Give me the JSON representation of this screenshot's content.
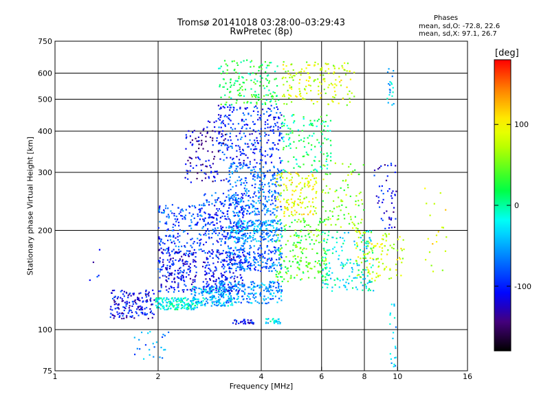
{
  "header": {
    "title": "Tromsø 20141018 03:28:00–03:29:43",
    "subtitle": "RwPretec (8p)"
  },
  "stats": {
    "heading": "Phases",
    "line_o": "mean, sd,O: -72.8, 22.6",
    "line_x": "mean, sd,X:  97.1, 26.7"
  },
  "colorbar": {
    "unit": "[deg]",
    "ticks": [
      "100",
      "0",
      "-100"
    ],
    "tick_values": [
      100,
      0,
      -100
    ],
    "range": [
      -180,
      180
    ],
    "colors": [
      "#ff0000",
      "#ff8000",
      "#ffff00",
      "#00ff00",
      "#00ffff",
      "#0080ff",
      "#0000ff",
      "#400080",
      "#000000"
    ]
  },
  "chart_data": {
    "type": "scatter",
    "title": "Tromsø 20141018 03:28:00–03:29:43",
    "subtitle": "RwPretec (8p)",
    "xlabel": "Frequency [MHz]",
    "ylabel": "Stationary phase Virtual Height [km]",
    "x_scale": "log",
    "y_scale": "log",
    "xlim": [
      1,
      16
    ],
    "ylim": [
      75,
      750
    ],
    "x_ticks": [
      1,
      2,
      4,
      6,
      8,
      10,
      16
    ],
    "x_tick_labels": [
      "1",
      "2",
      "4",
      "6",
      "8",
      "10",
      "16"
    ],
    "y_ticks": [
      75,
      100,
      200,
      300,
      400,
      500,
      600,
      750
    ],
    "y_tick_labels": [
      "75",
      "100",
      "200",
      "300",
      "400",
      "500",
      "600",
      "750"
    ],
    "x_gridlines": [
      2,
      4,
      6,
      8,
      10
    ],
    "y_gridlines": [
      100,
      200,
      300,
      400,
      500,
      600
    ],
    "grid": true,
    "color_variable": "phase [deg]",
    "clusters": [
      {
        "f": [
          1.45,
          1.95
        ],
        "h": [
          108,
          132
        ],
        "phase": -110,
        "n": 160
      },
      {
        "f": [
          1.95,
          2.6
        ],
        "h": [
          115,
          125
        ],
        "phase": -20,
        "n": 170
      },
      {
        "f": [
          2.0,
          2.6
        ],
        "h": [
          130,
          175
        ],
        "phase": -105,
        "n": 200
      },
      {
        "f": [
          2.5,
          3.3
        ],
        "h": [
          118,
          135
        ],
        "phase": -40,
        "n": 160
      },
      {
        "f": [
          2.0,
          2.7
        ],
        "h": [
          170,
          240
        ],
        "phase": -85,
        "n": 160
      },
      {
        "f": [
          2.7,
          3.6
        ],
        "h": [
          130,
          175
        ],
        "phase": -100,
        "n": 220
      },
      {
        "f": [
          2.7,
          3.6
        ],
        "h": [
          180,
          260
        ],
        "phase": -90,
        "n": 220
      },
      {
        "f": [
          3.0,
          4.6
        ],
        "h": [
          120,
          140
        ],
        "phase": -60,
        "n": 200
      },
      {
        "f": [
          3.2,
          4.6
        ],
        "h": [
          150,
          180
        ],
        "phase": -75,
        "n": 200
      },
      {
        "f": [
          3.2,
          4.6
        ],
        "h": [
          185,
          215
        ],
        "phase": -55,
        "n": 220
      },
      {
        "f": [
          3.2,
          4.6
        ],
        "h": [
          220,
          320
        ],
        "phase": -70,
        "n": 280
      },
      {
        "f": [
          3.0,
          4.6
        ],
        "h": [
          320,
          480
        ],
        "phase": -95,
        "n": 260
      },
      {
        "f": [
          3.0,
          4.5
        ],
        "h": [
          480,
          660
        ],
        "phase": 20,
        "n": 160
      },
      {
        "f": [
          2.4,
          3.2
        ],
        "h": [
          280,
          430
        ],
        "phase": -120,
        "n": 120
      },
      {
        "f": [
          4.4,
          6.2
        ],
        "h": [
          140,
          220
        ],
        "phase": 40,
        "n": 200
      },
      {
        "f": [
          4.4,
          5.8
        ],
        "h": [
          220,
          300
        ],
        "phase": 90,
        "n": 140
      },
      {
        "f": [
          4.6,
          6.4
        ],
        "h": [
          300,
          450
        ],
        "phase": 10,
        "n": 130
      },
      {
        "f": [
          4.6,
          7.5
        ],
        "h": [
          480,
          650
        ],
        "phase": 80,
        "n": 160
      },
      {
        "f": [
          6.0,
          8.5
        ],
        "h": [
          130,
          200
        ],
        "phase": -20,
        "n": 160
      },
      {
        "f": [
          6.0,
          8.0
        ],
        "h": [
          200,
          320
        ],
        "phase": 60,
        "n": 90
      },
      {
        "f": [
          7.5,
          10.5
        ],
        "h": [
          140,
          200
        ],
        "phase": 80,
        "n": 110
      },
      {
        "f": [
          8.5,
          10.0
        ],
        "h": [
          200,
          320
        ],
        "phase": -110,
        "n": 50
      },
      {
        "f": [
          3.3,
          3.8
        ],
        "h": [
          104,
          108
        ],
        "phase": -110,
        "n": 30
      },
      {
        "f": [
          4.1,
          4.6
        ],
        "h": [
          104,
          108
        ],
        "phase": -30,
        "n": 25
      },
      {
        "f": [
          9.3,
          9.8
        ],
        "h": [
          480,
          620
        ],
        "phase": -40,
        "n": 20
      },
      {
        "f": [
          9.5,
          10.0
        ],
        "h": [
          77,
          120
        ],
        "phase": -40,
        "n": 20
      },
      {
        "f": [
          12.0,
          14.0
        ],
        "h": [
          150,
          300
        ],
        "phase": 90,
        "n": 20
      },
      {
        "f": [
          1.25,
          1.35
        ],
        "h": [
          140,
          175
        ],
        "phase": -110,
        "n": 5
      },
      {
        "f": [
          1.7,
          2.2
        ],
        "h": [
          80,
          100
        ],
        "phase": -60,
        "n": 25
      }
    ]
  }
}
